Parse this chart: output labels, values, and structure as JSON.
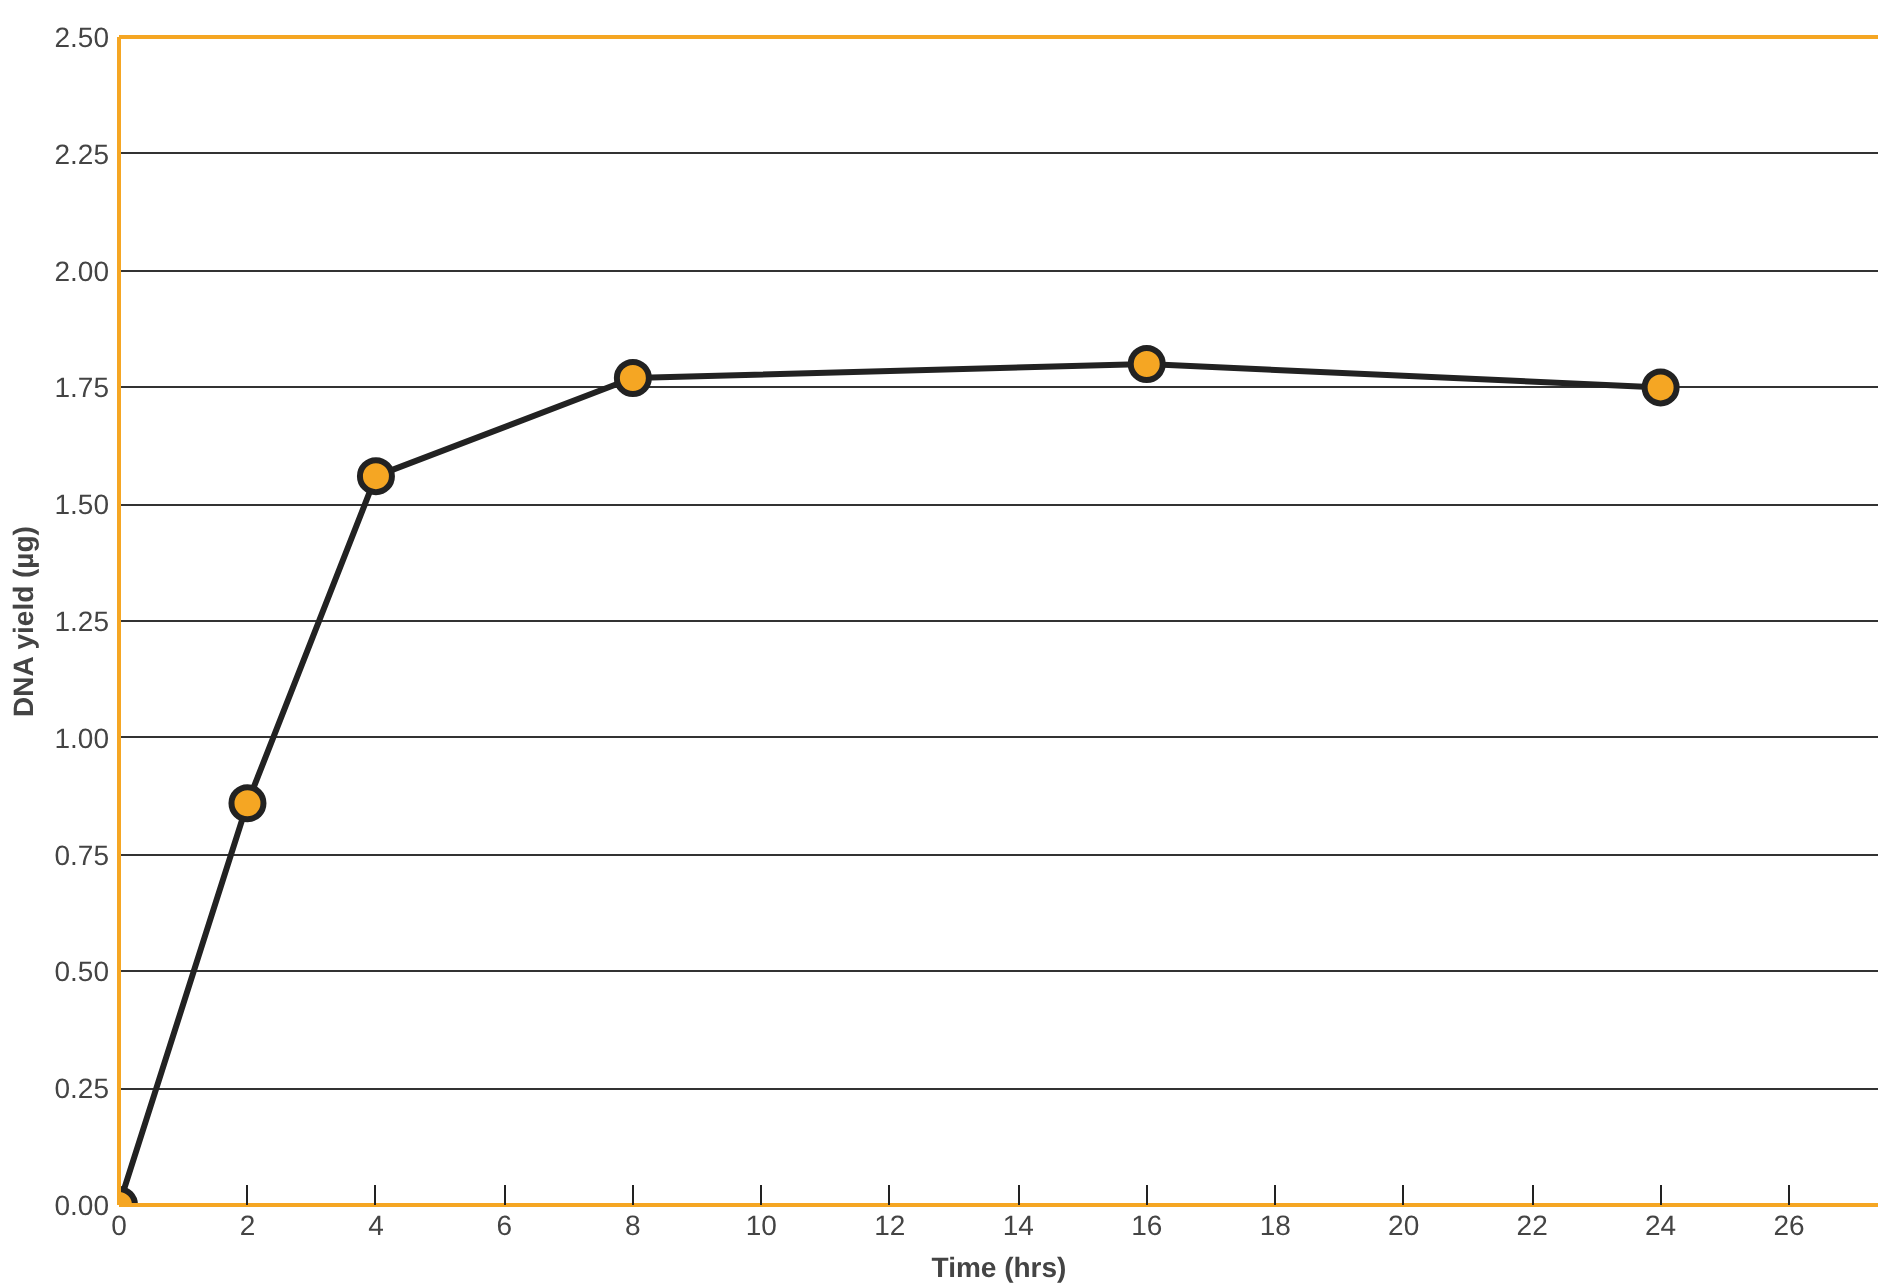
{
  "chart_data": {
    "type": "line",
    "xlabel": "Time (hrs)",
    "ylabel": "DNA yield (µg)",
    "x": [
      0,
      2,
      4,
      8,
      16,
      24
    ],
    "series": [
      {
        "color": "#222222",
        "values": [
          0,
          0.86,
          1.56,
          1.77,
          1.8,
          1.75
        ]
      }
    ],
    "xlim": [
      0,
      27.4
    ],
    "ylim": [
      0,
      2.5
    ],
    "xticks": [
      0,
      2,
      4,
      6,
      8,
      10,
      12,
      14,
      16,
      18,
      20,
      22,
      24,
      26
    ],
    "yticks": [
      {
        "value": 0,
        "label": "0.00"
      },
      {
        "value": 0.25,
        "label": "0.25"
      },
      {
        "value": 0.5,
        "label": "0.50"
      },
      {
        "value": 0.75,
        "label": "0.75"
      },
      {
        "value": 1,
        "label": "1.00"
      },
      {
        "value": 1.25,
        "label": "1.25"
      },
      {
        "value": 1.5,
        "label": "1.50"
      },
      {
        "value": 1.75,
        "label": "1.75"
      },
      {
        "value": 2,
        "label": "2.00"
      },
      {
        "value": 2.25,
        "label": "2.25"
      },
      {
        "value": 2.5,
        "label": "2.50"
      }
    ],
    "grid": "y",
    "marker": "circle",
    "line_style": "solid"
  }
}
